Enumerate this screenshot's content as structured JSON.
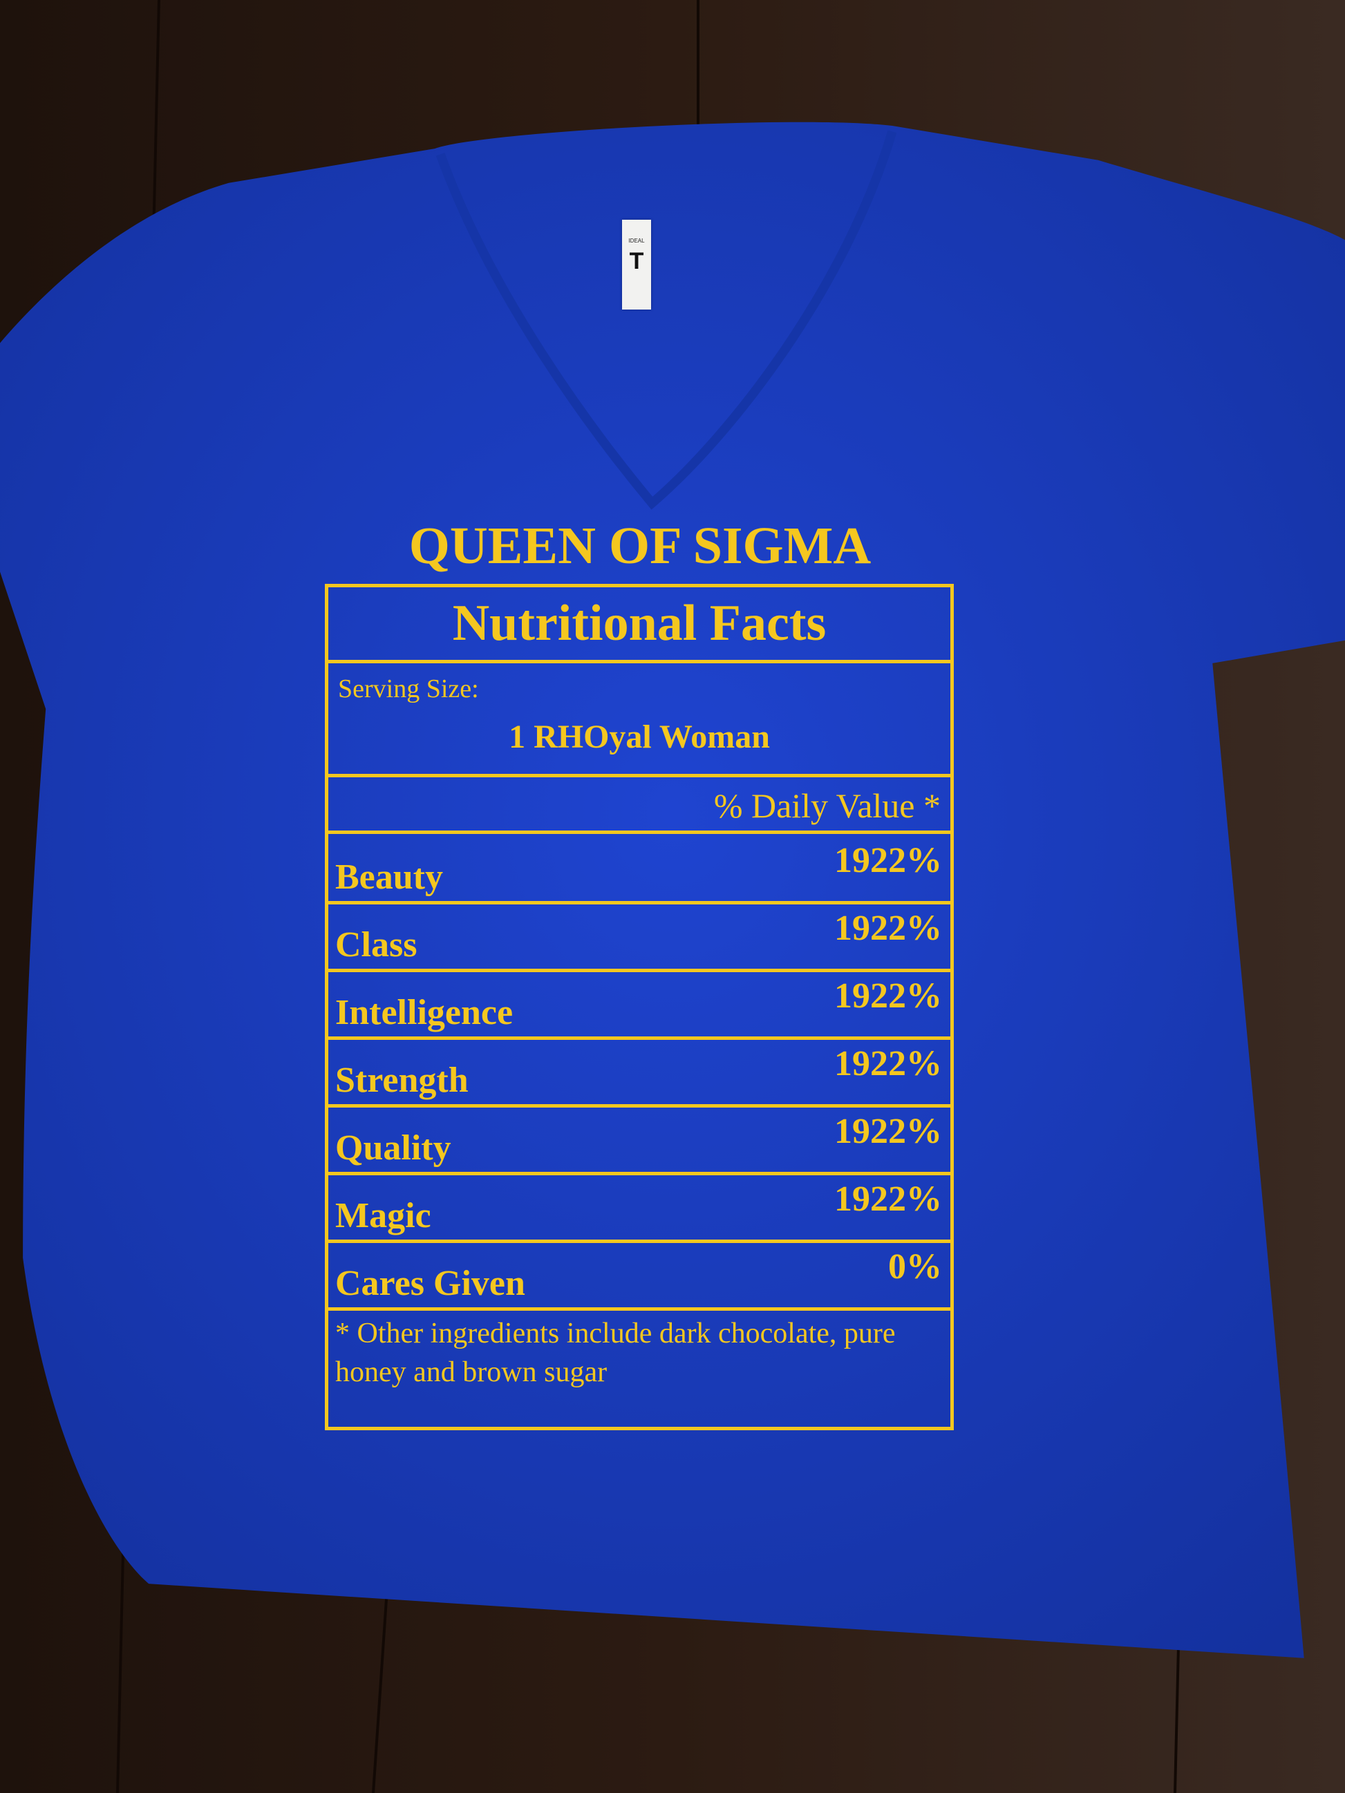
{
  "colors": {
    "shirt": "#1d3fc4",
    "print": "#f5c71f",
    "floor": "#24160f"
  },
  "tag": {
    "brand": "IDEAL",
    "logo": "T"
  },
  "print": {
    "title": "QUEEN OF SIGMA",
    "heading": "Nutritional Facts",
    "serving_label": "Serving Size:",
    "serving_value": "1 RHOyal Woman",
    "daily_value_header": "% Daily Value *",
    "items": [
      {
        "name": "Beauty",
        "value": "1922%"
      },
      {
        "name": "Class",
        "value": "1922%"
      },
      {
        "name": "Intelligence",
        "value": "1922%"
      },
      {
        "name": "Strength",
        "value": "1922%"
      },
      {
        "name": "Quality",
        "value": "1922%"
      },
      {
        "name": "Magic",
        "value": "1922%"
      },
      {
        "name": "Cares Given",
        "value": "0%"
      }
    ],
    "footnote": "* Other ingredients include dark chocolate, pure honey and brown sugar"
  }
}
